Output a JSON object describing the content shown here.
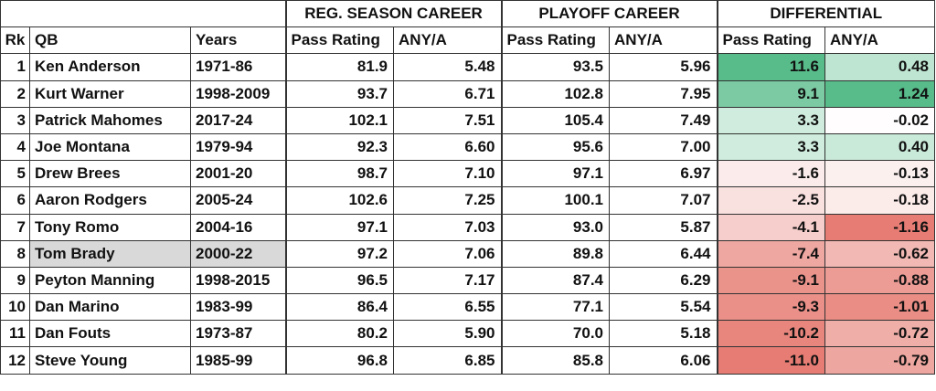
{
  "chart_data": {
    "type": "table",
    "group_headers": [
      "REG. SEASON CAREER",
      "PLAYOFF CAREER",
      "DIFFERENTIAL"
    ],
    "columns": [
      "Rk",
      "QB",
      "Years",
      "Pass Rating",
      "ANY/A",
      "Pass Rating",
      "ANY/A",
      "Pass Rating",
      "ANY/A"
    ],
    "highlighted_row": "Tom Brady",
    "colors": {
      "positive_strong": "#57bb8a",
      "negative_strong": "#e67c73",
      "neutral": "#ffffff",
      "highlight": "#d9d9d9"
    },
    "rows": [
      {
        "rk": "1",
        "qb": "Ken Anderson",
        "years": "1971-86",
        "reg_rating": "81.9",
        "reg_anya": "5.48",
        "po_rating": "93.5",
        "po_anya": "5.96",
        "diff_rating": "11.6",
        "diff_anya": "0.48"
      },
      {
        "rk": "2",
        "qb": "Kurt Warner",
        "years": "1998-2009",
        "reg_rating": "93.7",
        "reg_anya": "6.71",
        "po_rating": "102.8",
        "po_anya": "7.95",
        "diff_rating": "9.1",
        "diff_anya": "1.24"
      },
      {
        "rk": "3",
        "qb": "Patrick Mahomes",
        "years": "2017-24",
        "reg_rating": "102.1",
        "reg_anya": "7.51",
        "po_rating": "105.4",
        "po_anya": "7.49",
        "diff_rating": "3.3",
        "diff_anya": "-0.02"
      },
      {
        "rk": "4",
        "qb": "Joe Montana",
        "years": "1979-94",
        "reg_rating": "92.3",
        "reg_anya": "6.60",
        "po_rating": "95.6",
        "po_anya": "7.00",
        "diff_rating": "3.3",
        "diff_anya": "0.40"
      },
      {
        "rk": "5",
        "qb": "Drew Brees",
        "years": "2001-20",
        "reg_rating": "98.7",
        "reg_anya": "7.10",
        "po_rating": "97.1",
        "po_anya": "6.97",
        "diff_rating": "-1.6",
        "diff_anya": "-0.13"
      },
      {
        "rk": "6",
        "qb": "Aaron Rodgers",
        "years": "2005-24",
        "reg_rating": "102.6",
        "reg_anya": "7.25",
        "po_rating": "100.1",
        "po_anya": "7.07",
        "diff_rating": "-2.5",
        "diff_anya": "-0.18"
      },
      {
        "rk": "7",
        "qb": "Tony Romo",
        "years": "2004-16",
        "reg_rating": "97.1",
        "reg_anya": "7.03",
        "po_rating": "93.0",
        "po_anya": "5.87",
        "diff_rating": "-4.1",
        "diff_anya": "-1.16"
      },
      {
        "rk": "8",
        "qb": "Tom Brady",
        "years": "2000-22",
        "reg_rating": "97.2",
        "reg_anya": "7.06",
        "po_rating": "89.8",
        "po_anya": "6.44",
        "diff_rating": "-7.4",
        "diff_anya": "-0.62"
      },
      {
        "rk": "9",
        "qb": "Peyton Manning",
        "years": "1998-2015",
        "reg_rating": "96.5",
        "reg_anya": "7.17",
        "po_rating": "87.4",
        "po_anya": "6.29",
        "diff_rating": "-9.1",
        "diff_anya": "-0.88"
      },
      {
        "rk": "10",
        "qb": "Dan Marino",
        "years": "1983-99",
        "reg_rating": "86.4",
        "reg_anya": "6.55",
        "po_rating": "77.1",
        "po_anya": "5.54",
        "diff_rating": "-9.3",
        "diff_anya": "-1.01"
      },
      {
        "rk": "11",
        "qb": "Dan Fouts",
        "years": "1973-87",
        "reg_rating": "80.2",
        "reg_anya": "5.90",
        "po_rating": "70.0",
        "po_anya": "5.18",
        "diff_rating": "-10.2",
        "diff_anya": "-0.72"
      },
      {
        "rk": "12",
        "qb": "Steve Young",
        "years": "1985-99",
        "reg_rating": "96.8",
        "reg_anya": "6.85",
        "po_rating": "85.8",
        "po_anya": "6.06",
        "diff_rating": "-11.0",
        "diff_anya": "-0.79"
      }
    ]
  }
}
